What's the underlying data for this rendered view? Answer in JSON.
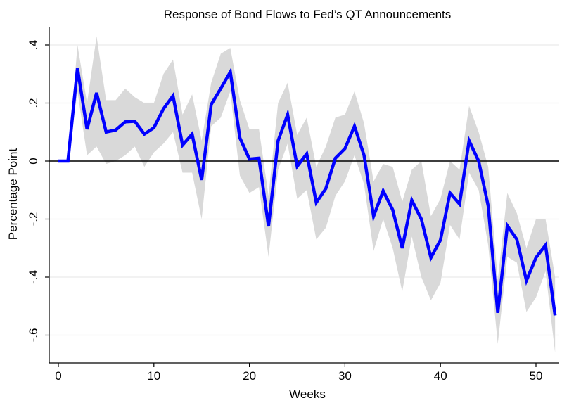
{
  "chart_data": {
    "type": "line",
    "title": "Response of Bond Flows to Fed’s QT Announcements",
    "xlabel": "Weeks",
    "ylabel": "Percentage Point",
    "xlim": [
      -1,
      52
    ],
    "ylim": [
      -0.7,
      0.46
    ],
    "xticks": [
      0,
      10,
      20,
      30,
      40,
      50
    ],
    "yticks": [
      0.4,
      0.2,
      0,
      -0.2,
      -0.4,
      -0.6
    ],
    "ytick_labels": [
      ".4",
      ".2",
      "0",
      "-.2",
      "-.4",
      "-.6"
    ],
    "grid": "horizontal",
    "reference_line": 0,
    "series": [
      {
        "color": "#0000ff",
        "x": [
          0,
          1,
          2,
          3,
          4,
          5,
          6,
          7,
          8,
          9,
          10,
          11,
          12,
          13,
          14,
          15,
          16,
          17,
          18,
          19,
          20,
          21,
          22,
          23,
          24,
          25,
          26,
          27,
          28,
          29,
          30,
          31,
          32,
          33,
          34,
          35,
          36,
          37,
          38,
          39,
          40,
          41,
          42,
          43,
          44,
          45,
          46,
          47,
          48,
          49,
          50,
          51,
          52
        ],
        "values": [
          0,
          0,
          0.32,
          0.11,
          0.235,
          0.1,
          0.107,
          0.135,
          0.137,
          0.093,
          0.115,
          0.18,
          0.225,
          0.055,
          0.093,
          -0.065,
          0.195,
          0.25,
          0.307,
          0.08,
          0.007,
          0.01,
          -0.225,
          0.07,
          0.16,
          -0.018,
          0.025,
          -0.143,
          -0.095,
          0.01,
          0.043,
          0.12,
          0.02,
          -0.19,
          -0.103,
          -0.168,
          -0.3,
          -0.135,
          -0.2,
          -0.333,
          -0.272,
          -0.11,
          -0.148,
          0.07,
          0,
          -0.155,
          -0.523,
          -0.223,
          -0.27,
          -0.412,
          -0.333,
          -0.29,
          -0.532
        ]
      }
    ],
    "confidence_band": {
      "color": "#d9d9d9",
      "lower": [
        0,
        0,
        0.24,
        0.02,
        0.05,
        -0.01,
        0,
        0.02,
        0.05,
        -0.02,
        0.03,
        0.06,
        0.1,
        -0.04,
        -0.04,
        -0.2,
        0.12,
        0.15,
        0.24,
        -0.05,
        -0.11,
        -0.09,
        -0.33,
        -0.03,
        0.06,
        -0.13,
        -0.1,
        -0.27,
        -0.23,
        -0.12,
        -0.07,
        0.02,
        -0.08,
        -0.31,
        -0.2,
        -0.3,
        -0.45,
        -0.26,
        -0.4,
        -0.48,
        -0.42,
        -0.22,
        -0.27,
        -0.04,
        -0.1,
        -0.29,
        -0.63,
        -0.33,
        -0.35,
        -0.52,
        -0.47,
        -0.38,
        -0.66
      ],
      "upper": [
        0,
        0,
        0.4,
        0.2,
        0.43,
        0.21,
        0.21,
        0.25,
        0.22,
        0.2,
        0.2,
        0.3,
        0.35,
        0.16,
        0.23,
        0.07,
        0.27,
        0.37,
        0.39,
        0.21,
        0.11,
        0.11,
        -0.12,
        0.2,
        0.27,
        0.09,
        0.15,
        -0.02,
        0.05,
        0.15,
        0.16,
        0.24,
        0.13,
        -0.07,
        -0.01,
        -0.02,
        -0.14,
        -0.03,
        0,
        -0.19,
        -0.13,
        0,
        -0.03,
        0.19,
        0.1,
        -0.02,
        -0.41,
        -0.11,
        -0.18,
        -0.3,
        -0.2,
        -0.2,
        -0.4
      ]
    }
  }
}
